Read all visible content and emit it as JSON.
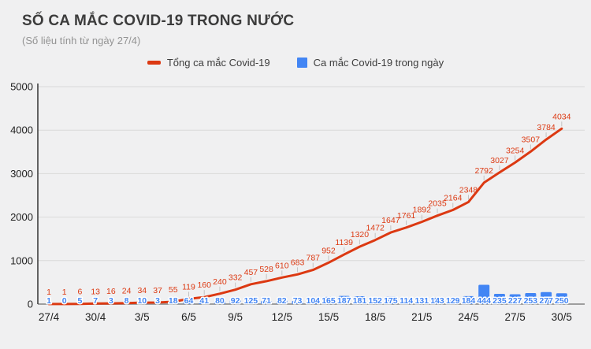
{
  "header": {
    "title": "SỐ CA MẮC COVID-19 TRONG NƯỚC",
    "subtitle": "(Số liệu tính từ ngày 27/4)"
  },
  "legend": [
    {
      "label": "Tổng ca mắc Covid-19",
      "color": "#dc3912",
      "marker": "line-dash"
    },
    {
      "label": "Ca mắc Covid-19 trong ngày",
      "color": "#4285f4",
      "marker": "square"
    }
  ],
  "colors": {
    "background": "#f0f0f1",
    "line": "#dc3912",
    "bar": "#4285f4",
    "grid": "#d9d9d9",
    "baseline": "#9e9e9e",
    "axis": "#333333",
    "tick_text": "#1f1f1f",
    "leader": "#c2c2c2"
  },
  "chart_data": {
    "type": "line+bar",
    "title": "SỐ CA MẮC COVID-19 TRONG NƯỚC",
    "subtitle": "(Số liệu tính từ ngày 27/4)",
    "xlabel": "",
    "ylabel": "",
    "ylim": [
      0,
      5000
    ],
    "y_ticks": [
      0,
      1000,
      2000,
      3000,
      4000,
      5000
    ],
    "grid": true,
    "legend_position": "top-center",
    "x_tick_labels": [
      "27/4",
      "30/4",
      "3/5",
      "6/5",
      "9/5",
      "12/5",
      "15/5",
      "18/5",
      "21/5",
      "24/5",
      "27/5",
      "30/5"
    ],
    "x_tick_every": 3,
    "n_points": 34,
    "series": [
      {
        "name": "Tổng ca mắc Covid-19",
        "type": "line",
        "color": "#dc3912",
        "values": [
          1,
          1,
          6,
          13,
          16,
          24,
          34,
          37,
          55,
          119,
          160,
          240,
          332,
          457,
          528,
          610,
          683,
          787,
          952,
          1139,
          1320,
          1472,
          1647,
          1761,
          1892,
          2035,
          2164,
          2348,
          2792,
          3027,
          3254,
          3507,
          3784,
          4034
        ]
      },
      {
        "name": "Ca mắc Covid-19 trong ngày",
        "type": "bar",
        "color": "#4285f4",
        "values": [
          1,
          0,
          5,
          7,
          3,
          8,
          10,
          3,
          18,
          64,
          41,
          80,
          92,
          125,
          71,
          82,
          73,
          104,
          165,
          187,
          181,
          152,
          175,
          114,
          131,
          143,
          129,
          184,
          444,
          235,
          227,
          253,
          277,
          250
        ]
      }
    ]
  }
}
